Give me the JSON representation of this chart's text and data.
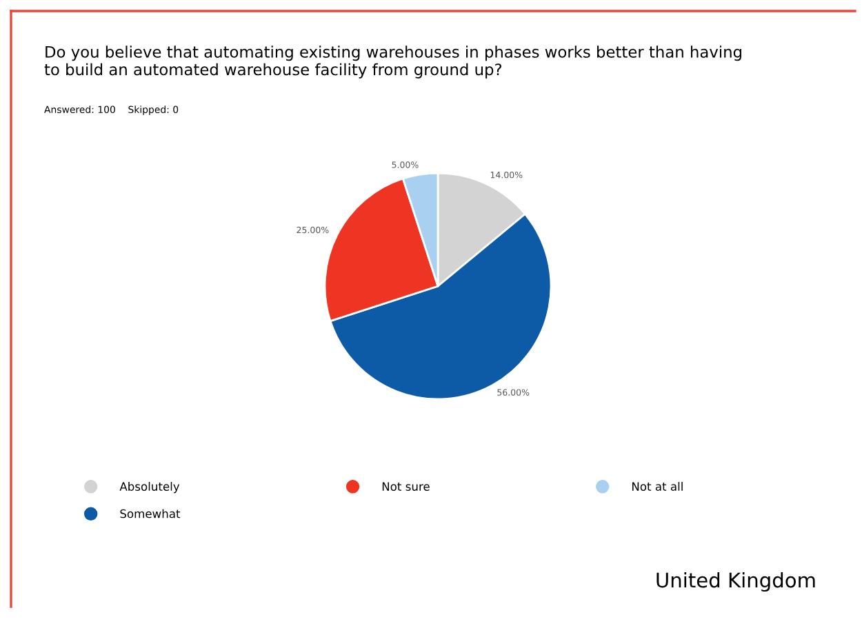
{
  "chart_data": {
    "type": "pie",
    "title": "Do you believe that automating existing warehouses in phases works better than having\nto build an automated warehouse facility from ground up?",
    "subtitle": "Answered: 100    Skipped: 0",
    "categories": [
      "Absolutely",
      "Somewhat",
      "Not sure",
      "Not at all"
    ],
    "values": [
      14,
      56,
      25,
      5
    ],
    "colors": [
      "#d3d3d3",
      "#0d5aa7",
      "#ee3524",
      "#a9d0f0"
    ],
    "value_labels": [
      "14.00%",
      "56.00%",
      "25.00%",
      "5.00%"
    ],
    "legend": "bottom",
    "annotations": [
      "United Kingdom"
    ]
  }
}
